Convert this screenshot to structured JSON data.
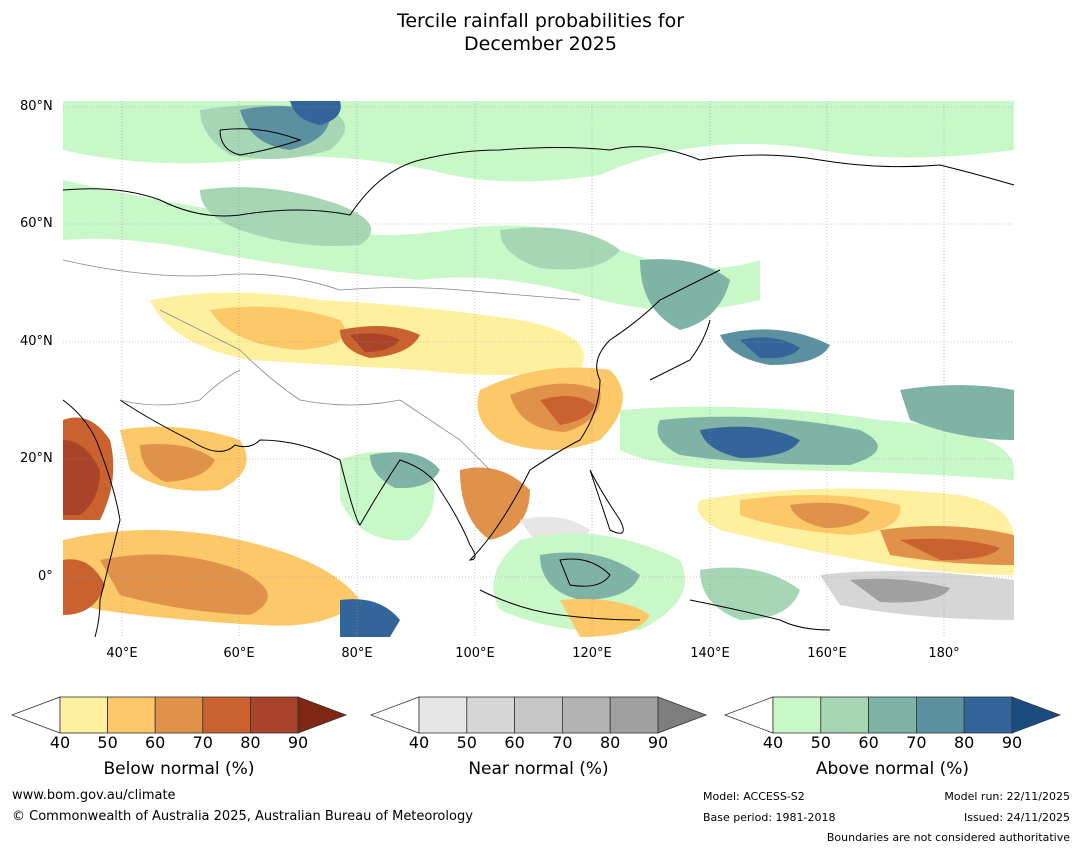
{
  "title": {
    "line1": "Tercile rainfall probabilities for",
    "line2": "December 2025"
  },
  "map": {
    "lat_labels": [
      "80°N",
      "60°N",
      "40°N",
      "20°N",
      "0°"
    ],
    "lon_labels": [
      "40°E",
      "60°E",
      "80°E",
      "100°E",
      "120°E",
      "140°E",
      "160°E",
      "180°"
    ],
    "extent": {
      "lon_min": 30,
      "lon_max": 191,
      "lat_min": -10,
      "lat_max": 81
    }
  },
  "legend": {
    "below": {
      "title": "Below normal (%)",
      "ticks": [
        "40",
        "50",
        "60",
        "70",
        "80",
        "90"
      ],
      "colors": [
        "#fff0a0",
        "#fdc867",
        "#e0924a",
        "#c9622f",
        "#a9432a",
        "#7f2713"
      ]
    },
    "near": {
      "title": "Near normal (%)",
      "ticks": [
        "40",
        "50",
        "60",
        "70",
        "80",
        "90"
      ],
      "colors": [
        "#e6e6e6",
        "#d6d6d6",
        "#c6c6c6",
        "#b2b3b2",
        "#a0a0a0",
        "#7e7e7e"
      ]
    },
    "above": {
      "title": "Above normal (%)",
      "ticks": [
        "40",
        "50",
        "60",
        "70",
        "80",
        "90"
      ],
      "colors": [
        "#c8f8c8",
        "#a7d6b5",
        "#7fb3a5",
        "#5a90a0",
        "#33649a",
        "#1b4c80"
      ]
    }
  },
  "footer": {
    "website": "www.bom.gov.au/climate",
    "copyright": "© Commonwealth of Australia 2025, Australian Bureau of Meteorology",
    "model": "Model: ACCESS-S2",
    "base_period": "Base period: 1981-2018",
    "model_run": "Model run: 22/11/2025",
    "issued": "Issued: 24/11/2025",
    "disclaimer": "Boundaries are not considered authoritative"
  }
}
